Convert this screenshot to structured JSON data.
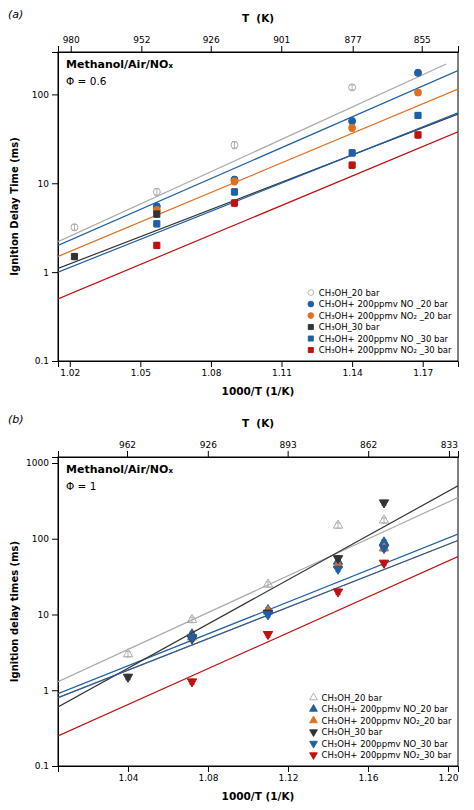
{
  "chart_data": [
    {
      "type": "scatter",
      "title": "Methanol/Air/NOₓ",
      "annotations": [
        "Φ = 0.6",
        "(a)"
      ],
      "x_label": "1000/T (1/K)",
      "x2_label": "T  (K)",
      "y_label": "Ignition Delay Time (ms)",
      "xlim": [
        1.015,
        1.185
      ],
      "xticks": [
        1.02,
        1.05,
        1.08,
        1.11,
        1.14,
        1.17
      ],
      "x2ticks": [
        {
          "value": 1.0204081632653061,
          "label": "980"
        },
        {
          "value": 1.050420168067227,
          "label": "952"
        },
        {
          "value": 1.079913606911447,
          "label": "926"
        },
        {
          "value": 1.109877913429523,
          "label": "901"
        },
        {
          "value": 1.140250855188141,
          "label": "877"
        },
        {
          "value": 1.169590643274854,
          "label": "855"
        }
      ],
      "ylim": [
        0.1,
        300
      ],
      "yticks": [
        0.1,
        1,
        10,
        100
      ],
      "log": "y",
      "grid": false,
      "legend": "lower right",
      "series": [
        {
          "name": "CH₃OH_20 bar",
          "color": "#aaaaaa",
          "marker": "circle-open",
          "x": [
            1.022,
            1.057,
            1.09,
            1.14,
            1.168
          ],
          "values": [
            3.2,
            8.0,
            27.0,
            120.0,
            175.0
          ],
          "yerr": [
            0.25,
            0.7,
            2.5,
            8.0,
            12.0
          ],
          "fit_x": [
            1.015,
            1.18
          ],
          "fit_y": [
            2.2,
            220.0
          ]
        },
        {
          "name": "CH₃OH+ 200ppmv NO _20 bar",
          "color": "#1e5fa8",
          "marker": "circle",
          "x": [
            1.057,
            1.09,
            1.14,
            1.168
          ],
          "values": [
            5.5,
            11.0,
            50.0,
            175.0
          ],
          "yerr": [
            0.4,
            0.9,
            4.0,
            12.0
          ],
          "fit_x": [
            1.015,
            1.185
          ],
          "fit_y": [
            2.0,
            185.0
          ]
        },
        {
          "name": "CH₃OH+ 200ppmv NO₂ _20 bar",
          "color": "#e07020",
          "marker": "circle",
          "x": [
            1.057,
            1.09,
            1.14,
            1.168
          ],
          "values": [
            5.0,
            10.5,
            42.0,
            105.0
          ],
          "yerr": [
            0.4,
            0.9,
            3.5,
            8.0
          ],
          "fit_x": [
            1.015,
            1.185
          ],
          "fit_y": [
            1.5,
            115.0
          ]
        },
        {
          "name": "CH₃OH_30 bar",
          "color": "#333333",
          "marker": "square",
          "x": [
            1.022,
            1.057
          ],
          "values": [
            1.5,
            4.5
          ],
          "yerr": [
            0.12,
            0.35
          ],
          "fit_x": [
            1.015,
            1.185
          ],
          "fit_y": [
            1.1,
            60.0
          ]
        },
        {
          "name": "CH₃OH+ 200ppmv NO _30 bar",
          "color": "#1e5fa8",
          "marker": "square",
          "x": [
            1.057,
            1.09,
            1.14,
            1.168
          ],
          "values": [
            3.5,
            8.0,
            22.0,
            58.0
          ],
          "yerr": [
            0.28,
            0.65,
            1.8,
            4.5
          ],
          "fit_x": [
            1.015,
            1.185
          ],
          "fit_y": [
            1.0,
            62.0
          ]
        },
        {
          "name": "CH₃OH+ 200ppmv NO₂ _30 bar",
          "color": "#c01010",
          "marker": "square",
          "x": [
            1.057,
            1.09,
            1.14,
            1.168
          ],
          "values": [
            2.0,
            6.0,
            16.0,
            35.0
          ],
          "yerr": [
            0.16,
            0.5,
            1.3,
            2.8
          ],
          "fit_x": [
            1.015,
            1.185
          ],
          "fit_y": [
            0.5,
            38.0
          ]
        }
      ]
    },
    {
      "type": "scatter",
      "title": "Methanol/Air/NOₓ",
      "annotations": [
        "Φ = 1",
        "(b)"
      ],
      "x_label": "1000/T (1/K)",
      "x2_label": "T  (K)",
      "y_label": "Ignition delay times (ms)",
      "xlim": [
        1.005,
        1.205
      ],
      "xticks": [
        1.04,
        1.08,
        1.12,
        1.16,
        {
          "value": 1.2,
          "label": "1.20"
        }
      ],
      "x2ticks": [
        {
          "value": 1.03950103950104,
          "label": "962"
        },
        {
          "value": 1.079913606911447,
          "label": "926"
        },
        {
          "value": 1.119820828667413,
          "label": "893"
        },
        {
          "value": 1.160092807424594,
          "label": "862"
        },
        {
          "value": 1.200480192076831,
          "label": "833"
        }
      ],
      "ylim": [
        0.1,
        1200
      ],
      "yticks": [
        0.1,
        1,
        10,
        100,
        1000
      ],
      "log": "y",
      "grid": false,
      "legend": "lower right",
      "series": [
        {
          "name": "CH₃OH_20 bar",
          "color": "#aaaaaa",
          "marker": "triangle-up-open",
          "x": [
            1.04,
            1.072,
            1.11,
            1.145,
            1.168
          ],
          "values": [
            3.0,
            8.5,
            25.0,
            150.0,
            175.0
          ],
          "yerr": [
            0.25,
            0.7,
            2.0,
            12.0,
            14.0
          ],
          "fit_x": [
            1.005,
            1.205
          ],
          "fit_y": [
            1.3,
            350.0
          ]
        },
        {
          "name": "CH₃OH+ 200ppmv NO_20 bar",
          "color": "#1e5fa8",
          "marker": "triangle-up",
          "x": [
            1.072,
            1.11,
            1.145,
            1.168
          ],
          "values": [
            5.5,
            11.5,
            50.0,
            90.0
          ],
          "yerr": [
            0.4,
            0.9,
            4.0,
            7.0
          ],
          "fit_x": [
            1.005,
            1.205
          ],
          "fit_y": [
            0.9,
            115.0
          ]
        },
        {
          "name": "CH₃OH+ 200ppmv NO₂_20 bar",
          "color": "#e07020",
          "marker": "triangle-up",
          "x": [
            1.072,
            1.11,
            1.145,
            1.168
          ],
          "values": [
            5.0,
            11.0,
            45.0,
            75.0
          ],
          "yerr": [
            0.4,
            0.9,
            3.5,
            6.0
          ],
          "fit_x": [
            1.005,
            1.205
          ],
          "fit_y": [
            0.8,
            95.0
          ]
        },
        {
          "name": "CH₃OH_30 bar",
          "color": "#333333",
          "marker": "triangle-down",
          "x": [
            1.04,
            1.072,
            1.11,
            1.145,
            1.168
          ],
          "values": [
            1.5,
            4.8,
            10.5,
            55.0,
            300.0
          ],
          "yerr": [
            0.12,
            0.38,
            0.85,
            4.5,
            22.0
          ],
          "fit_x": [
            1.005,
            1.205
          ],
          "fit_y": [
            0.6,
            500.0
          ]
        },
        {
          "name": "CH₃OH+ 200ppmv NO_30 bar",
          "color": "#1e5fa8",
          "marker": "triangle-down",
          "x": [
            1.072,
            1.11,
            1.145,
            1.168
          ],
          "values": [
            5.0,
            10.0,
            40.0,
            75.0
          ],
          "yerr": [
            0.4,
            0.8,
            3.2,
            6.0
          ],
          "fit_x": [
            1.005,
            1.205
          ],
          "fit_y": [
            0.8,
            95.0
          ]
        },
        {
          "name": "CH₃OH+ 200ppmv NO₂_30 bar",
          "color": "#c01010",
          "marker": "triangle-down",
          "x": [
            1.072,
            1.11,
            1.145,
            1.168
          ],
          "values": [
            1.3,
            5.5,
            20.0,
            48.0
          ],
          "yerr": [
            0.1,
            0.45,
            1.6,
            3.8
          ],
          "fit_x": [
            1.005,
            1.205
          ],
          "fit_y": [
            0.25,
            58.0
          ]
        }
      ]
    }
  ]
}
